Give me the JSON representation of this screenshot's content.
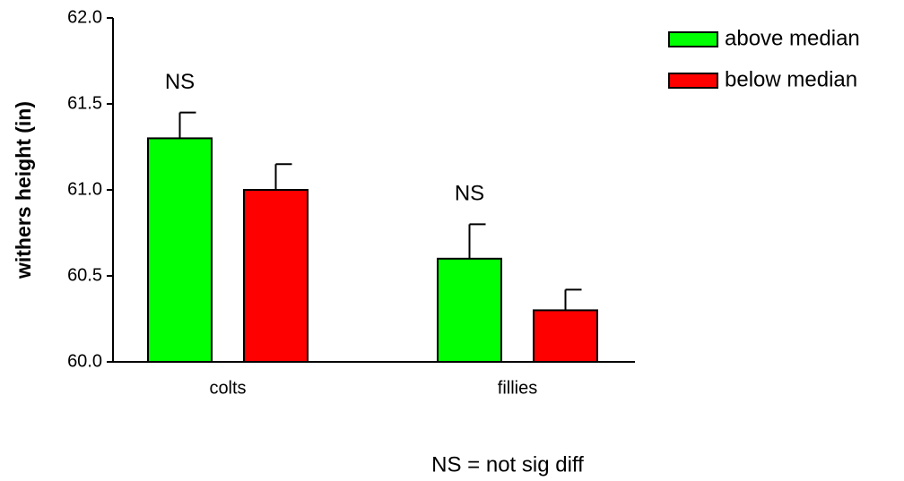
{
  "chart_data": {
    "type": "bar",
    "y_label": "withers height (in)",
    "categories": [
      "colts",
      "fillies"
    ],
    "series": [
      {
        "name": "above median",
        "color": "#00ff00",
        "values": [
          61.3,
          60.6
        ],
        "errors": [
          0.15,
          0.2
        ]
      },
      {
        "name": "below median",
        "color": "#ff0000",
        "values": [
          61.0,
          60.3
        ],
        "errors": [
          0.15,
          0.12
        ]
      }
    ],
    "ylim": [
      60,
      62
    ],
    "yticks": [
      {
        "value": 60,
        "label": "60.0"
      },
      {
        "value": 60.5,
        "label": "60.5"
      },
      {
        "value": 61,
        "label": "61.0"
      },
      {
        "value": 61.5,
        "label": "61.5"
      },
      {
        "value": 62,
        "label": "62.0"
      }
    ],
    "annotations": [
      {
        "text": "NS",
        "category": "colts",
        "series": "above median"
      },
      {
        "text": "NS",
        "category": "fillies",
        "series": "above median"
      }
    ],
    "note": "NS = not sig diff",
    "legend": "top-right"
  }
}
